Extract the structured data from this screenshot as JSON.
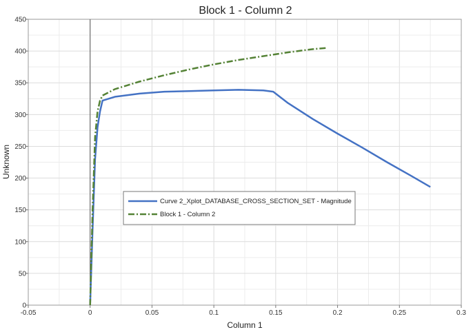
{
  "chart_data": {
    "type": "line",
    "title": "Block 1 - Column 2",
    "xlabel": "Column 1",
    "ylabel": "Unknown",
    "xlim": [
      -0.05,
      0.3
    ],
    "ylim": [
      0,
      450
    ],
    "xticks": [
      -0.05,
      0,
      0.05,
      0.1,
      0.15,
      0.2,
      0.25,
      0.3
    ],
    "xtick_labels": [
      "-0.05",
      "0",
      "0.05",
      "0.1",
      "0.15",
      "0.2",
      "0.25",
      "0.3"
    ],
    "yticks": [
      0,
      50,
      100,
      150,
      200,
      250,
      300,
      350,
      400,
      450
    ],
    "ytick_labels": [
      "0",
      "50",
      "100",
      "150",
      "200",
      "250",
      "300",
      "350",
      "400",
      "450"
    ],
    "grid": true,
    "legend_position": "center-left",
    "series": [
      {
        "name": "Curve 2_Xplot_DATABASE_CROSS_SECTION_SET - Magnitude",
        "color": "#4472c4",
        "style": "solid",
        "x": [
          0,
          0.002,
          0.004,
          0.006,
          0.008,
          0.01,
          0.02,
          0.04,
          0.06,
          0.08,
          0.1,
          0.12,
          0.14,
          0.148,
          0.16,
          0.18,
          0.2,
          0.22,
          0.24,
          0.26,
          0.275
        ],
        "y": [
          0,
          120,
          230,
          280,
          305,
          322,
          328,
          333,
          336,
          337,
          338,
          339,
          338,
          336,
          318,
          293,
          270,
          248,
          225,
          203,
          186
        ]
      },
      {
        "name": "Block 1 - Column 2",
        "color": "#548235",
        "style": "dashdot",
        "x": [
          0,
          0.002,
          0.004,
          0.006,
          0.008,
          0.01,
          0.02,
          0.04,
          0.06,
          0.08,
          0.1,
          0.12,
          0.14,
          0.16,
          0.18,
          0.192
        ],
        "y": [
          0,
          150,
          265,
          305,
          322,
          330,
          340,
          352,
          362,
          371,
          379,
          386,
          392,
          398,
          403,
          405
        ]
      }
    ]
  }
}
